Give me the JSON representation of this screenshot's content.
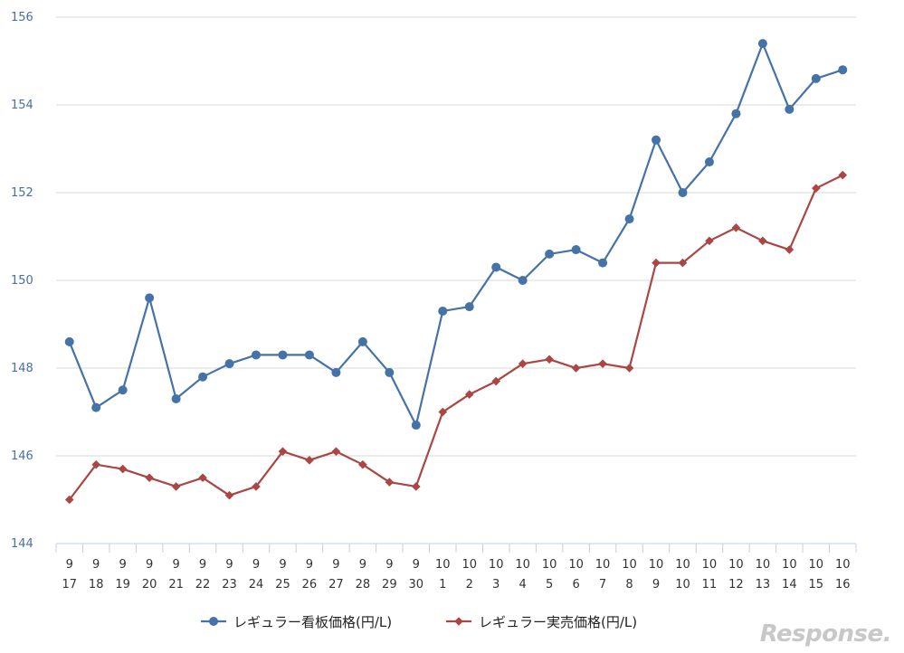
{
  "chart_data": {
    "type": "line",
    "title": "",
    "xlabel": "",
    "ylabel": "",
    "ylim": [
      144,
      156
    ],
    "yticks": [
      "144",
      "146",
      "148",
      "150",
      "152",
      "154",
      "156"
    ],
    "x_month": [
      "9",
      "9",
      "9",
      "9",
      "9",
      "9",
      "9",
      "9",
      "9",
      "9",
      "9",
      "9",
      "9",
      "9",
      "10",
      "10",
      "10",
      "10",
      "10",
      "10",
      "10",
      "10",
      "10",
      "10",
      "10",
      "10",
      "10",
      "10",
      "10",
      "10"
    ],
    "x_day": [
      "17",
      "18",
      "19",
      "20",
      "21",
      "22",
      "23",
      "24",
      "25",
      "26",
      "27",
      "28",
      "29",
      "30",
      "1",
      "2",
      "3",
      "4",
      "5",
      "6",
      "7",
      "8",
      "9",
      "10",
      "11",
      "12",
      "13",
      "14",
      "15",
      "16"
    ],
    "series": [
      {
        "name": "レギュラー看板価格(円/L)",
        "color": "#4572a7",
        "marker": "circle",
        "values": [
          148.6,
          147.1,
          147.5,
          149.6,
          147.3,
          147.8,
          148.1,
          148.3,
          148.3,
          148.3,
          147.9,
          148.6,
          147.9,
          146.7,
          149.3,
          149.4,
          150.3,
          150.0,
          150.6,
          150.7,
          150.4,
          151.4,
          153.2,
          152.0,
          152.7,
          153.8,
          155.4,
          153.9,
          154.6,
          154.8
        ]
      },
      {
        "name": "レギュラー実売価格(円/L)",
        "color": "#aa4643",
        "marker": "diamond",
        "values": [
          145.0,
          145.8,
          145.7,
          145.5,
          145.3,
          145.5,
          145.1,
          145.3,
          146.1,
          145.9,
          146.1,
          145.8,
          145.4,
          145.3,
          147.0,
          147.4,
          147.7,
          148.1,
          148.2,
          148.0,
          148.1,
          148.0,
          150.4,
          150.4,
          150.9,
          151.2,
          150.9,
          150.7,
          152.1,
          152.4
        ]
      }
    ],
    "grid": true,
    "legend_position": "bottom-center"
  },
  "watermark": "Response."
}
